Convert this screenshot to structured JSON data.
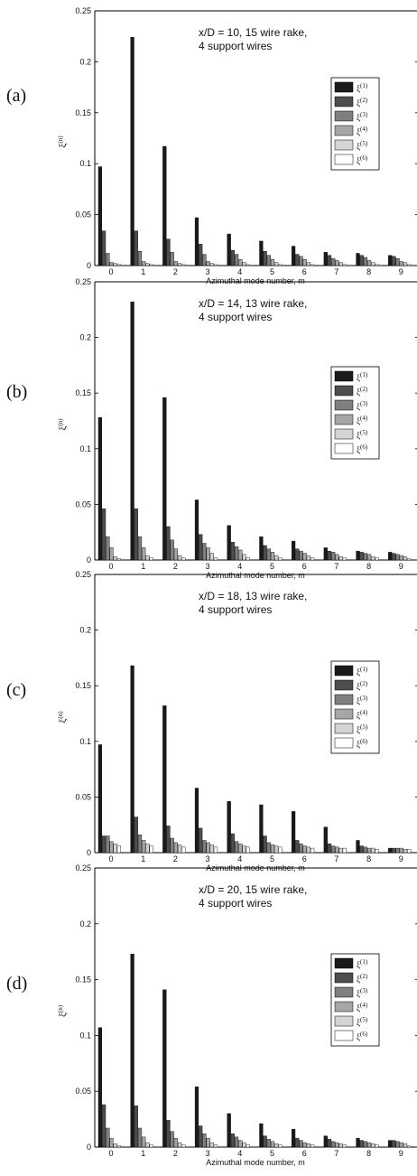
{
  "colors": [
    "#1a1a1a",
    "#4d4d4d",
    "#7f7f7f",
    "#a6a6a6",
    "#d4d4d4",
    "#ffffff"
  ],
  "chart_data": [
    {
      "type": "bar",
      "panel_label": "(a)",
      "title_line1": "x/D = 10, 15 wire rake,",
      "title_line2": "4 support wires",
      "xlabel": "Azimuthal mode number, m",
      "ylabel": "ξ(n)",
      "ylim": [
        0,
        0.25
      ],
      "yticks": [
        "0",
        "0.05",
        "0.1",
        "0.15",
        "0.2",
        "0.25"
      ],
      "categories": [
        "0",
        "1",
        "2",
        "3",
        "4",
        "5",
        "6",
        "7",
        "8",
        "9"
      ],
      "legend_position": "right",
      "series": [
        {
          "name": "ξ(1)",
          "values": [
            0.097,
            0.224,
            0.117,
            0.047,
            0.031,
            0.024,
            0.019,
            0.013,
            0.012,
            0.01
          ]
        },
        {
          "name": "ξ(2)",
          "values": [
            0.034,
            0.034,
            0.026,
            0.021,
            0.015,
            0.014,
            0.011,
            0.01,
            0.01,
            0.009
          ]
        },
        {
          "name": "ξ(3)",
          "values": [
            0.012,
            0.014,
            0.013,
            0.011,
            0.011,
            0.01,
            0.009,
            0.007,
            0.008,
            0.007
          ]
        },
        {
          "name": "ξ(4)",
          "values": [
            0.003,
            0.004,
            0.004,
            0.004,
            0.006,
            0.006,
            0.006,
            0.005,
            0.005,
            0.004
          ]
        },
        {
          "name": "ξ(5)",
          "values": [
            0.002,
            0.002,
            0.002,
            0.002,
            0.003,
            0.003,
            0.003,
            0.003,
            0.003,
            0.003
          ]
        },
        {
          "name": "ξ(6)",
          "values": [
            0.001,
            0.001,
            0.001,
            0.001,
            0.001,
            0.001,
            0.001,
            0.001,
            0.001,
            0.001
          ]
        }
      ]
    },
    {
      "type": "bar",
      "panel_label": "(b)",
      "title_line1": "x/D = 14, 13 wire rake,",
      "title_line2": "4 support wires",
      "xlabel": "Azimuthal mode number, m",
      "ylabel": "ξ(n)",
      "ylim": [
        0,
        0.25
      ],
      "yticks": [
        "0",
        "0.05",
        "0.1",
        "0.15",
        "0.2",
        "0.25"
      ],
      "categories": [
        "0",
        "1",
        "2",
        "3",
        "4",
        "5",
        "6",
        "7",
        "8",
        "9"
      ],
      "legend_position": "right",
      "series": [
        {
          "name": "ξ(1)",
          "values": [
            0.128,
            0.232,
            0.146,
            0.054,
            0.031,
            0.021,
            0.017,
            0.011,
            0.008,
            0.007
          ]
        },
        {
          "name": "ξ(2)",
          "values": [
            0.046,
            0.046,
            0.03,
            0.023,
            0.016,
            0.013,
            0.01,
            0.008,
            0.007,
            0.006
          ]
        },
        {
          "name": "ξ(3)",
          "values": [
            0.021,
            0.021,
            0.018,
            0.015,
            0.012,
            0.01,
            0.008,
            0.007,
            0.006,
            0.005
          ]
        },
        {
          "name": "ξ(4)",
          "values": [
            0.011,
            0.011,
            0.01,
            0.011,
            0.009,
            0.007,
            0.006,
            0.005,
            0.005,
            0.004
          ]
        },
        {
          "name": "ξ(5)",
          "values": [
            0.003,
            0.004,
            0.004,
            0.006,
            0.005,
            0.004,
            0.004,
            0.003,
            0.003,
            0.003
          ]
        },
        {
          "name": "ξ(6)",
          "values": [
            0.001,
            0.002,
            0.002,
            0.002,
            0.002,
            0.002,
            0.002,
            0.002,
            0.002,
            0.001
          ]
        }
      ]
    },
    {
      "type": "bar",
      "panel_label": "(c)",
      "title_line1": "x/D = 18, 13 wire rake,",
      "title_line2": "4 support wires",
      "xlabel": "Azimuthal mode number, m",
      "ylabel": "ξ(n)",
      "ylim": [
        0,
        0.25
      ],
      "yticks": [
        "0",
        "0.05",
        "0.1",
        "0.15",
        "0.2",
        "0.25"
      ],
      "categories": [
        "0",
        "1",
        "2",
        "3",
        "4",
        "5",
        "6",
        "7",
        "8",
        "9"
      ],
      "legend_position": "right",
      "series": [
        {
          "name": "ξ(1)",
          "values": [
            0.097,
            0.168,
            0.132,
            0.058,
            0.046,
            0.043,
            0.037,
            0.023,
            0.011,
            0.004
          ]
        },
        {
          "name": "ξ(2)",
          "values": [
            0.015,
            0.032,
            0.024,
            0.022,
            0.017,
            0.015,
            0.011,
            0.008,
            0.006,
            0.004
          ]
        },
        {
          "name": "ξ(3)",
          "values": [
            0.015,
            0.016,
            0.013,
            0.011,
            0.01,
            0.009,
            0.008,
            0.006,
            0.005,
            0.004
          ]
        },
        {
          "name": "ξ(4)",
          "values": [
            0.01,
            0.011,
            0.009,
            0.009,
            0.008,
            0.007,
            0.006,
            0.005,
            0.004,
            0.004
          ]
        },
        {
          "name": "ξ(5)",
          "values": [
            0.008,
            0.008,
            0.007,
            0.007,
            0.006,
            0.006,
            0.005,
            0.004,
            0.004,
            0.003
          ]
        },
        {
          "name": "ξ(6)",
          "values": [
            0.006,
            0.006,
            0.005,
            0.005,
            0.005,
            0.005,
            0.004,
            0.004,
            0.003,
            0.003
          ]
        }
      ]
    },
    {
      "type": "bar",
      "panel_label": "(d)",
      "title_line1": "x/D = 20, 15 wire rake,",
      "title_line2": "4 support wires",
      "xlabel": "Azimuthal mode number, m",
      "ylabel": "ξ(n)",
      "ylim": [
        0,
        0.25
      ],
      "yticks": [
        "0",
        "0.05",
        "0.1",
        "0.15",
        "0.2",
        "0.25"
      ],
      "categories": [
        "0",
        "1",
        "2",
        "3",
        "4",
        "5",
        "6",
        "7",
        "8",
        "9"
      ],
      "legend_position": "right",
      "series": [
        {
          "name": "ξ(1)",
          "values": [
            0.107,
            0.173,
            0.141,
            0.054,
            0.03,
            0.021,
            0.016,
            0.01,
            0.008,
            0.006
          ]
        },
        {
          "name": "ξ(2)",
          "values": [
            0.038,
            0.037,
            0.024,
            0.019,
            0.012,
            0.01,
            0.008,
            0.007,
            0.006,
            0.006
          ]
        },
        {
          "name": "ξ(3)",
          "values": [
            0.017,
            0.017,
            0.014,
            0.012,
            0.009,
            0.007,
            0.006,
            0.005,
            0.005,
            0.005
          ]
        },
        {
          "name": "ξ(4)",
          "values": [
            0.008,
            0.009,
            0.008,
            0.008,
            0.006,
            0.005,
            0.004,
            0.004,
            0.004,
            0.004
          ]
        },
        {
          "name": "ξ(5)",
          "values": [
            0.003,
            0.004,
            0.004,
            0.004,
            0.004,
            0.003,
            0.003,
            0.003,
            0.003,
            0.003
          ]
        },
        {
          "name": "ξ(6)",
          "values": [
            0.001,
            0.002,
            0.002,
            0.002,
            0.002,
            0.002,
            0.002,
            0.002,
            0.002,
            0.001
          ]
        }
      ]
    }
  ]
}
